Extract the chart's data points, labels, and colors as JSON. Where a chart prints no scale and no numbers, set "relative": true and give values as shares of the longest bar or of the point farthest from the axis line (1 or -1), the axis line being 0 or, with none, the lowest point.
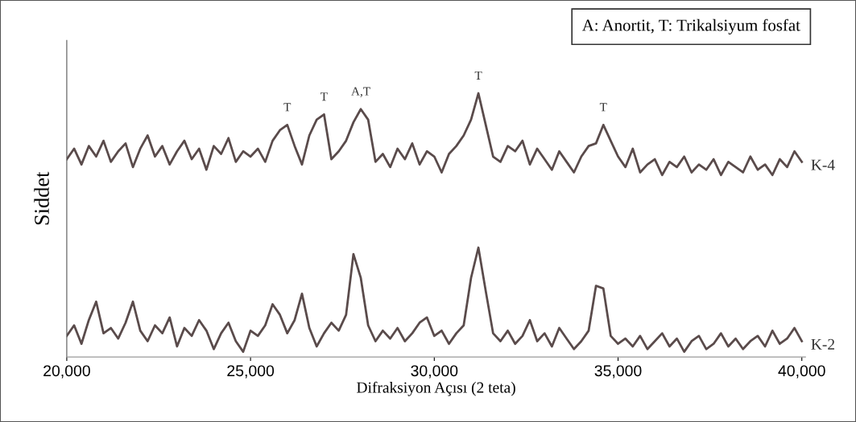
{
  "chart_data": {
    "type": "line",
    "xlabel": "Difraksiyon Açısı (2 teta)",
    "ylabel": "Siddet",
    "relative": true,
    "legend": false,
    "grid": false,
    "xlim": [
      20000,
      40100
    ],
    "xticks": [
      {
        "value": 20000,
        "label": "20,000"
      },
      {
        "value": 25000,
        "label": "25,000"
      },
      {
        "value": 30000,
        "label": "30,000"
      },
      {
        "value": 35000,
        "label": "35,000"
      },
      {
        "value": 40000,
        "label": "40,000"
      }
    ],
    "tick_labels": "x",
    "x": [
      20000,
      20200,
      20400,
      20600,
      20800,
      21000,
      21200,
      21400,
      21600,
      21800,
      22000,
      22200,
      22400,
      22600,
      22800,
      23000,
      23200,
      23400,
      23600,
      23800,
      24000,
      24200,
      24400,
      24600,
      24800,
      25000,
      25200,
      25400,
      25600,
      25800,
      26000,
      26200,
      26400,
      26600,
      26800,
      27000,
      27200,
      27400,
      27600,
      27800,
      28000,
      28200,
      28400,
      28600,
      28800,
      29000,
      29200,
      29400,
      29600,
      29800,
      30000,
      30200,
      30400,
      30600,
      30800,
      31000,
      31200,
      31400,
      31600,
      31800,
      32000,
      32200,
      32400,
      32600,
      32800,
      33000,
      33200,
      33400,
      33600,
      33800,
      34000,
      34200,
      34400,
      34600,
      34800,
      35000,
      35200,
      35400,
      35600,
      35800,
      36000,
      36200,
      36400,
      36600,
      36800,
      37000,
      37200,
      37400,
      37600,
      37800,
      38000,
      38200,
      38400,
      38600,
      38800,
      39000,
      39200,
      39400,
      39600,
      39800,
      40000
    ],
    "series": [
      {
        "name": "K-4",
        "color": "#5a4b4b",
        "values": [
          0.75,
          0.79,
          0.73,
          0.8,
          0.76,
          0.82,
          0.74,
          0.78,
          0.81,
          0.72,
          0.79,
          0.84,
          0.76,
          0.8,
          0.73,
          0.78,
          0.82,
          0.75,
          0.79,
          0.71,
          0.8,
          0.77,
          0.83,
          0.74,
          0.78,
          0.76,
          0.79,
          0.74,
          0.82,
          0.86,
          0.88,
          0.8,
          0.73,
          0.84,
          0.9,
          0.92,
          0.75,
          0.78,
          0.82,
          0.89,
          0.94,
          0.9,
          0.74,
          0.77,
          0.72,
          0.79,
          0.75,
          0.81,
          0.73,
          0.78,
          0.76,
          0.7,
          0.77,
          0.8,
          0.84,
          0.9,
          1.0,
          0.88,
          0.76,
          0.74,
          0.8,
          0.78,
          0.82,
          0.73,
          0.79,
          0.75,
          0.71,
          0.78,
          0.74,
          0.7,
          0.76,
          0.8,
          0.81,
          0.88,
          0.82,
          0.76,
          0.72,
          0.79,
          0.7,
          0.73,
          0.75,
          0.69,
          0.74,
          0.72,
          0.76,
          0.7,
          0.73,
          0.71,
          0.75,
          0.69,
          0.74,
          0.72,
          0.7,
          0.76,
          0.71,
          0.73,
          0.69,
          0.75,
          0.72,
          0.78,
          0.74
        ]
      },
      {
        "name": "K-2",
        "color": "#5a4b4b",
        "values": [
          0.08,
          0.12,
          0.05,
          0.14,
          0.21,
          0.09,
          0.11,
          0.07,
          0.13,
          0.21,
          0.1,
          0.06,
          0.12,
          0.09,
          0.15,
          0.04,
          0.11,
          0.08,
          0.14,
          0.1,
          0.03,
          0.09,
          0.13,
          0.06,
          0.02,
          0.1,
          0.08,
          0.12,
          0.2,
          0.16,
          0.09,
          0.14,
          0.24,
          0.11,
          0.04,
          0.09,
          0.13,
          0.1,
          0.16,
          0.39,
          0.3,
          0.12,
          0.06,
          0.1,
          0.07,
          0.11,
          0.06,
          0.09,
          0.13,
          0.15,
          0.08,
          0.1,
          0.05,
          0.09,
          0.12,
          0.3,
          0.415,
          0.25,
          0.09,
          0.06,
          0.1,
          0.05,
          0.08,
          0.14,
          0.06,
          0.09,
          0.04,
          0.11,
          0.07,
          0.03,
          0.06,
          0.1,
          0.27,
          0.26,
          0.08,
          0.05,
          0.07,
          0.04,
          0.08,
          0.03,
          0.06,
          0.09,
          0.04,
          0.07,
          0.02,
          0.06,
          0.08,
          0.03,
          0.05,
          0.09,
          0.04,
          0.07,
          0.03,
          0.06,
          0.08,
          0.04,
          0.1,
          0.05,
          0.07,
          0.11,
          0.06
        ]
      }
    ],
    "annotations": [
      "A: Anortit, T: Trikalsiyum fosfat",
      {
        "text": "T",
        "x": 26000,
        "y": 0.88
      },
      {
        "text": "T",
        "x": 27000,
        "y": 0.92
      },
      {
        "text": "A,T",
        "x": 28000,
        "y": 0.94
      },
      {
        "text": "T",
        "x": 31200,
        "y": 1.0
      },
      {
        "text": "T",
        "x": 34600,
        "y": 0.88
      }
    ]
  }
}
